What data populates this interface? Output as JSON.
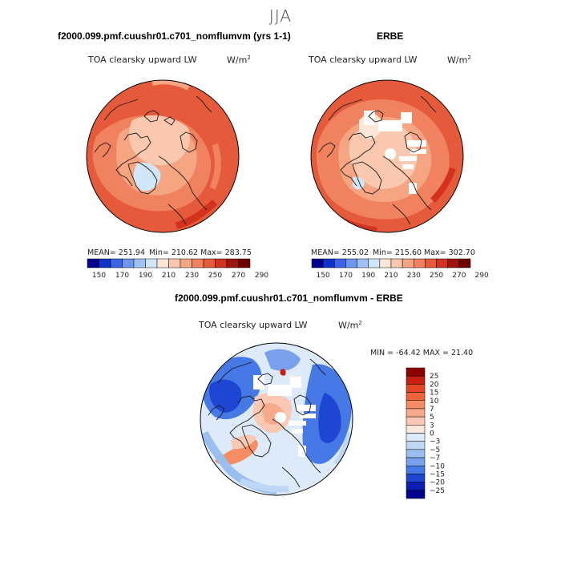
{
  "season": "JJA",
  "panels": {
    "model": {
      "title": "f2000.099.pmf.cuushr01.c701_nomflumvm (yrs 1-1)",
      "variable": "TOA clearsky upward LW",
      "units_base": "W/m",
      "units_exp": "2",
      "stats": {
        "mean": "MEAN= 251.94",
        "min": "Min= 210.62",
        "max": "Max= 283.75"
      }
    },
    "obs": {
      "title": "ERBE",
      "variable": "TOA clearsky upward LW",
      "units_base": "W/m",
      "units_exp": "2",
      "stats": {
        "mean": "MEAN= 255.02",
        "min": "Min= 215.60",
        "max": "Max= 302.70"
      }
    },
    "diff": {
      "title": "f2000.099.pmf.cuushr01.c701_nomflumvm - ERBE",
      "variable": "TOA clearsky upward LW",
      "units_base": "W/m",
      "units_exp": "2",
      "stats": {
        "min_max": "MIN = -64.42 MAX =  21.40"
      }
    }
  },
  "chart_data": [
    {
      "type": "heatmap",
      "projection": "north polar stereographic",
      "title": "f2000.099.pmf.cuushr01.c701_nomflumvm (yrs 1-1)",
      "variable": "TOA clearsky upward LW",
      "units": "W/m2",
      "mean": 251.94,
      "min": 210.62,
      "max": 283.75,
      "colorbar": {
        "levels": [
          "150",
          "170",
          "190",
          "210",
          "230",
          "250",
          "270",
          "290"
        ],
        "colors": [
          "#00008c",
          "#0f32c8",
          "#3c64e6",
          "#6e96f0",
          "#a0c3f5",
          "#d2e6fa",
          "#fce6d7",
          "#fac8af",
          "#f5a582",
          "#f08260",
          "#e65a3c",
          "#d2321e",
          "#a01410",
          "#6e0000"
        ]
      }
    },
    {
      "type": "heatmap",
      "projection": "north polar stereographic",
      "title": "ERBE",
      "variable": "TOA clearsky upward LW",
      "units": "W/m2",
      "mean": 255.02,
      "min": 215.6,
      "max": 302.7,
      "colorbar": {
        "levels": [
          "150",
          "170",
          "190",
          "210",
          "230",
          "250",
          "270",
          "290"
        ],
        "colors": [
          "#00008c",
          "#0f32c8",
          "#3c64e6",
          "#6e96f0",
          "#a0c3f5",
          "#d2e6fa",
          "#fce6d7",
          "#fac8af",
          "#f5a582",
          "#f08260",
          "#e65a3c",
          "#d2321e",
          "#a01410",
          "#6e0000"
        ]
      }
    },
    {
      "type": "heatmap",
      "projection": "north polar stereographic",
      "title": "f2000.099.pmf.cuushr01.c701_nomflumvm - ERBE",
      "variable": "TOA clearsky upward LW",
      "units": "W/m2",
      "min": -64.42,
      "max": 21.4,
      "colorbar": {
        "levels": [
          "25",
          "20",
          "15",
          "10",
          "7",
          "5",
          "3",
          "0",
          "−3",
          "−5",
          "−7",
          "−10",
          "−15",
          "−20",
          "−25"
        ],
        "colors": [
          "#8c0000",
          "#c81e0f",
          "#e64628",
          "#f0643c",
          "#f58c64",
          "#f8aa8c",
          "#fbc8b4",
          "#fde6dc",
          "#dceafa",
          "#bed7f5",
          "#9bbef0",
          "#78a0eb",
          "#4678e6",
          "#1e46d2",
          "#0a1eb4",
          "#00008c"
        ]
      }
    }
  ]
}
